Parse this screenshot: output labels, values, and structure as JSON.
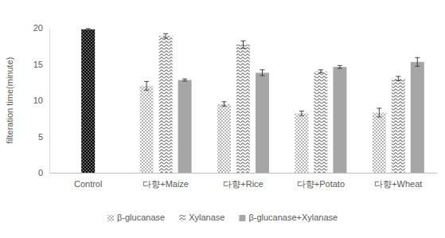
{
  "chart_data": {
    "type": "bar",
    "y_label": "filteration time(minute)",
    "categories": [
      "Control",
      "다향+Maize",
      "다향+Rice",
      "다향+Potato",
      "다향+Wheat"
    ],
    "series": [
      {
        "name": "β-glucanase",
        "color": "#ffffff",
        "colors": [
          "#000000",
          "#ffffff",
          "#ffffff",
          "#ffffff",
          "#ffffff"
        ],
        "values": [
          19.8,
          12.0,
          9.5,
          8.2,
          8.3
        ],
        "errors": [
          0.1,
          0.6,
          0.3,
          0.3,
          0.6
        ]
      },
      {
        "name": "Xylanase",
        "color": "#ffffff",
        "values": [
          null,
          18.9,
          17.7,
          14.0,
          13.0
        ],
        "errors": [
          null,
          0.3,
          0.5,
          0.2,
          0.3
        ]
      },
      {
        "name": "β-glucanase+Xylanase",
        "color": "#a6a6a6",
        "values": [
          null,
          12.8,
          13.8,
          14.6,
          15.3
        ],
        "errors": [
          null,
          0.15,
          0.4,
          0.2,
          0.6
        ]
      }
    ],
    "ylim": [
      0,
      20
    ],
    "yticks": [
      0,
      5,
      10,
      15,
      20
    ],
    "grid": false,
    "legend": "bottom"
  }
}
